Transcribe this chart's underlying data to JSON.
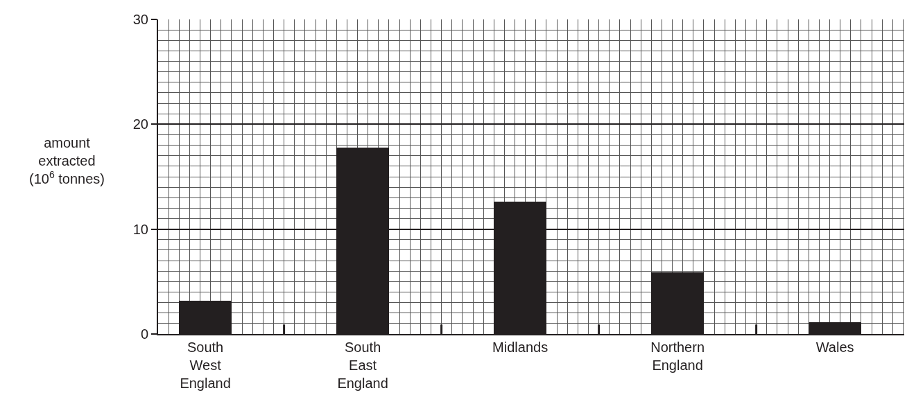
{
  "chart_data": {
    "type": "bar",
    "ylabel": "amount\nextracted\n(10$^{6}$ tonnes)",
    "categories": [
      "South\nWest\nEngland",
      "South\nEast\nEngland",
      "Midlands",
      "Northern\nEngland",
      "Wales"
    ],
    "values": [
      3.2,
      17.8,
      12.6,
      5.9,
      1.1
    ],
    "color": "#231f20",
    "ylim": [
      0,
      30
    ],
    "yticks": [
      0,
      10,
      20,
      30
    ],
    "grid": true
  }
}
